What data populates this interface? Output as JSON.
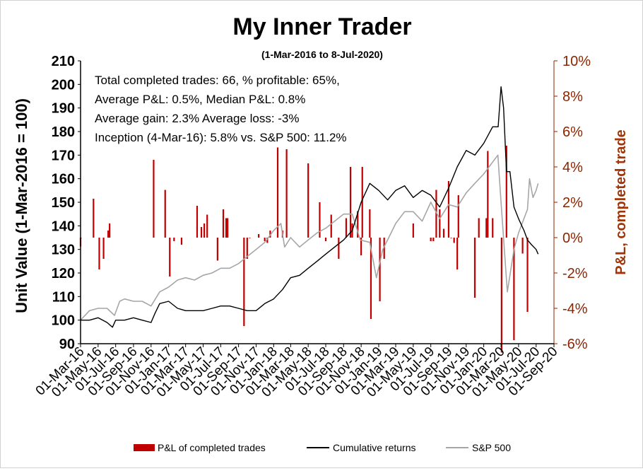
{
  "chart_data": {
    "type": "line",
    "title": "My Inner Trader",
    "subtitle": "(1-Mar-2016 to 8-Jul-2020)",
    "ylabel": "Unit Value (1-Mar-2016 = 100)",
    "ylabel_right": "P&L, completed trade",
    "ylim": [
      90,
      210
    ],
    "yticks": [
      "90",
      "100",
      "110",
      "120",
      "130",
      "140",
      "150",
      "160",
      "170",
      "180",
      "190",
      "200",
      "210"
    ],
    "ylim_right": [
      -0.06,
      0.1
    ],
    "yticks_right": [
      "-6%",
      "-4%",
      "-2%",
      "0%",
      "2%",
      "4%",
      "6%",
      "8%",
      "10%"
    ],
    "x_start": "2016-03-01",
    "x_end": "2020-09-01",
    "xticks": [
      "01-Mar-16",
      "01-May-16",
      "01-Jul-16",
      "01-Sep-16",
      "01-Nov-16",
      "01-Jan-17",
      "01-Mar-17",
      "01-May-17",
      "01-Jul-17",
      "01-Sep-17",
      "01-Nov-17",
      "01-Jan-18",
      "01-Mar-18",
      "01-May-18",
      "01-Jul-18",
      "01-Sep-18",
      "01-Nov-18",
      "01-Jan-19",
      "01-Mar-19",
      "01-May-19",
      "01-Jul-19",
      "01-Sep-19",
      "01-Nov-19",
      "01-Jan-20",
      "01-Mar-20",
      "01-May-20",
      "01-Jul-20",
      "01-Sep-20"
    ],
    "annotations": [
      "Total completed trades: 66, % profitable: 65%,",
      "Average P&L: 0.5%, Median P&L: 0.8%",
      "Average gain: 2.3% Average loss: -3%",
      "Inception (4-Mar-16): 5.8% vs. S&P 500: 11.2%"
    ],
    "legend": [
      "P&L of completed trades",
      "Cumulative returns",
      "S&P 500"
    ],
    "legend_position": "bottom",
    "colors": {
      "pl": "#c00000",
      "cumulative": "#000000",
      "sp500": "#a6a6a6",
      "right_axis": "#8b2500"
    },
    "series": [
      {
        "name": "Cumulative returns",
        "axis": "left",
        "points": [
          [
            "2016-03-01",
            100
          ],
          [
            "2016-04-01",
            100
          ],
          [
            "2016-05-01",
            101
          ],
          [
            "2016-06-01",
            99
          ],
          [
            "2016-06-20",
            97
          ],
          [
            "2016-07-01",
            100
          ],
          [
            "2016-08-01",
            100
          ],
          [
            "2016-09-01",
            101
          ],
          [
            "2016-10-01",
            100
          ],
          [
            "2016-11-01",
            99
          ],
          [
            "2016-11-15",
            103
          ],
          [
            "2016-12-01",
            107
          ],
          [
            "2017-01-01",
            108
          ],
          [
            "2017-02-01",
            105
          ],
          [
            "2017-03-01",
            104
          ],
          [
            "2017-04-01",
            104
          ],
          [
            "2017-05-01",
            104
          ],
          [
            "2017-06-01",
            105
          ],
          [
            "2017-07-01",
            106
          ],
          [
            "2017-08-01",
            106
          ],
          [
            "2017-09-01",
            105
          ],
          [
            "2017-10-01",
            104
          ],
          [
            "2017-11-01",
            104
          ],
          [
            "2017-12-01",
            107
          ],
          [
            "2018-01-01",
            109
          ],
          [
            "2018-02-01",
            113
          ],
          [
            "2018-03-01",
            118
          ],
          [
            "2018-04-01",
            119
          ],
          [
            "2018-05-01",
            122
          ],
          [
            "2018-06-01",
            125
          ],
          [
            "2018-07-01",
            128
          ],
          [
            "2018-08-01",
            131
          ],
          [
            "2018-09-01",
            134
          ],
          [
            "2018-10-01",
            138
          ],
          [
            "2018-11-01",
            150
          ],
          [
            "2018-12-01",
            158
          ],
          [
            "2019-01-01",
            155
          ],
          [
            "2019-02-01",
            151
          ],
          [
            "2019-03-01",
            155
          ],
          [
            "2019-04-01",
            157
          ],
          [
            "2019-05-01",
            152
          ],
          [
            "2019-06-01",
            155
          ],
          [
            "2019-07-01",
            153
          ],
          [
            "2019-08-01",
            148
          ],
          [
            "2019-09-01",
            156
          ],
          [
            "2019-10-01",
            165
          ],
          [
            "2019-11-01",
            172
          ],
          [
            "2019-12-01",
            170
          ],
          [
            "2020-01-01",
            175
          ],
          [
            "2020-02-01",
            182
          ],
          [
            "2020-02-20",
            182
          ],
          [
            "2020-03-01",
            199
          ],
          [
            "2020-03-10",
            190
          ],
          [
            "2020-03-20",
            163
          ],
          [
            "2020-04-01",
            163
          ],
          [
            "2020-04-15",
            148
          ],
          [
            "2020-05-01",
            143
          ],
          [
            "2020-05-20",
            138
          ],
          [
            "2020-06-01",
            134
          ],
          [
            "2020-06-15",
            132
          ],
          [
            "2020-07-01",
            130
          ],
          [
            "2020-07-08",
            128
          ]
        ]
      },
      {
        "name": "S&P 500",
        "axis": "left",
        "points": [
          [
            "2016-03-01",
            100
          ],
          [
            "2016-04-01",
            104
          ],
          [
            "2016-05-01",
            105
          ],
          [
            "2016-06-01",
            105
          ],
          [
            "2016-06-27",
            102
          ],
          [
            "2016-07-15",
            108
          ],
          [
            "2016-08-01",
            109
          ],
          [
            "2016-09-01",
            108
          ],
          [
            "2016-10-01",
            108
          ],
          [
            "2016-11-01",
            106
          ],
          [
            "2016-12-01",
            112
          ],
          [
            "2017-01-01",
            114
          ],
          [
            "2017-02-01",
            117
          ],
          [
            "2017-03-01",
            118
          ],
          [
            "2017-04-01",
            117
          ],
          [
            "2017-05-01",
            119
          ],
          [
            "2017-06-01",
            120
          ],
          [
            "2017-07-01",
            122
          ],
          [
            "2017-08-01",
            122
          ],
          [
            "2017-09-01",
            124
          ],
          [
            "2017-10-01",
            127
          ],
          [
            "2017-11-01",
            130
          ],
          [
            "2017-12-01",
            133
          ],
          [
            "2018-01-01",
            138
          ],
          [
            "2018-01-26",
            141
          ],
          [
            "2018-02-08",
            131
          ],
          [
            "2018-03-01",
            135
          ],
          [
            "2018-04-01",
            131
          ],
          [
            "2018-05-01",
            134
          ],
          [
            "2018-06-01",
            137
          ],
          [
            "2018-07-01",
            139
          ],
          [
            "2018-08-01",
            142
          ],
          [
            "2018-09-01",
            145
          ],
          [
            "2018-10-01",
            145
          ],
          [
            "2018-10-29",
            134
          ],
          [
            "2018-12-01",
            133
          ],
          [
            "2018-12-24",
            118
          ],
          [
            "2019-01-15",
            130
          ],
          [
            "2019-02-01",
            134
          ],
          [
            "2019-03-01",
            141
          ],
          [
            "2019-04-01",
            146
          ],
          [
            "2019-05-01",
            146
          ],
          [
            "2019-06-01",
            142
          ],
          [
            "2019-07-01",
            150
          ],
          [
            "2019-08-01",
            143
          ],
          [
            "2019-09-01",
            149
          ],
          [
            "2019-10-01",
            148
          ],
          [
            "2019-11-01",
            154
          ],
          [
            "2019-12-01",
            158
          ],
          [
            "2020-01-01",
            162
          ],
          [
            "2020-02-19",
            170
          ],
          [
            "2020-03-01",
            150
          ],
          [
            "2020-03-23",
            112
          ],
          [
            "2020-04-15",
            130
          ],
          [
            "2020-05-01",
            137
          ],
          [
            "2020-06-01",
            147
          ],
          [
            "2020-06-08",
            160
          ],
          [
            "2020-06-20",
            152
          ],
          [
            "2020-07-01",
            155
          ],
          [
            "2020-07-08",
            158
          ]
        ]
      },
      {
        "name": "P&L of completed trades",
        "axis": "right",
        "type": "bar",
        "points": [
          [
            "2016-03-01",
            -0.005
          ],
          [
            "2016-03-02",
            0.0
          ],
          [
            "2016-04-15",
            0.022
          ],
          [
            "2016-05-05",
            -0.018
          ],
          [
            "2016-05-20",
            -0.012
          ],
          [
            "2016-06-05",
            0.004
          ],
          [
            "2016-06-10",
            0.008
          ],
          [
            "2016-11-10",
            0.044
          ],
          [
            "2016-12-20",
            0.027
          ],
          [
            "2017-01-05",
            -0.022
          ],
          [
            "2017-01-20",
            -0.002
          ],
          [
            "2017-02-15",
            -0.004
          ],
          [
            "2017-04-10",
            0.018
          ],
          [
            "2017-04-25",
            0.006
          ],
          [
            "2017-05-05",
            0.008
          ],
          [
            "2017-05-15",
            0.013
          ],
          [
            "2017-06-20",
            -0.013
          ],
          [
            "2017-07-10",
            0.016
          ],
          [
            "2017-07-20",
            0.011
          ],
          [
            "2017-07-25",
            0.011
          ],
          [
            "2017-09-20",
            -0.05
          ],
          [
            "2017-10-01",
            -0.012
          ],
          [
            "2017-10-10",
            0.0
          ],
          [
            "2017-11-10",
            0.002
          ],
          [
            "2017-12-01",
            -0.002
          ],
          [
            "2017-12-10",
            -0.003
          ],
          [
            "2017-12-20",
            0.004
          ],
          [
            "2018-01-15",
            0.051
          ],
          [
            "2018-02-01",
            0.004
          ],
          [
            "2018-02-15",
            0.05
          ],
          [
            "2018-05-01",
            0.042
          ],
          [
            "2018-06-10",
            0.02
          ],
          [
            "2018-07-01",
            -0.002
          ],
          [
            "2018-07-20",
            0.013
          ],
          [
            "2018-08-15",
            -0.012
          ],
          [
            "2018-09-10",
            0.011
          ],
          [
            "2018-09-25",
            0.04
          ],
          [
            "2018-10-01",
            0.008
          ],
          [
            "2018-10-20",
            0.015
          ],
          [
            "2018-11-01",
            -0.01
          ],
          [
            "2018-11-05",
            0.04
          ],
          [
            "2018-12-01",
            0.016
          ],
          [
            "2018-12-05",
            -0.046
          ],
          [
            "2019-01-05",
            -0.036
          ],
          [
            "2019-01-20",
            -0.012
          ],
          [
            "2019-05-01",
            0.008
          ],
          [
            "2019-07-01",
            -0.002
          ],
          [
            "2019-07-10",
            -0.002
          ],
          [
            "2019-07-20",
            0.027
          ],
          [
            "2019-08-01",
            0.016
          ],
          [
            "2019-08-15",
            0.005
          ],
          [
            "2019-09-01",
            0.032
          ],
          [
            "2019-09-10",
            0.0
          ],
          [
            "2019-09-20",
            -0.003
          ],
          [
            "2019-10-01",
            -0.018
          ],
          [
            "2019-10-05",
            0.024
          ],
          [
            "2019-12-01",
            -0.034
          ],
          [
            "2019-12-15",
            0.011
          ],
          [
            "2020-01-10",
            0.011
          ],
          [
            "2020-01-15",
            0.049
          ],
          [
            "2020-02-01",
            0.011
          ],
          [
            "2020-03-03",
            -0.065
          ],
          [
            "2020-03-20",
            0.052
          ],
          [
            "2020-04-15",
            -0.058
          ],
          [
            "2020-05-15",
            -0.009
          ],
          [
            "2020-06-01",
            -0.042
          ]
        ]
      }
    ]
  }
}
